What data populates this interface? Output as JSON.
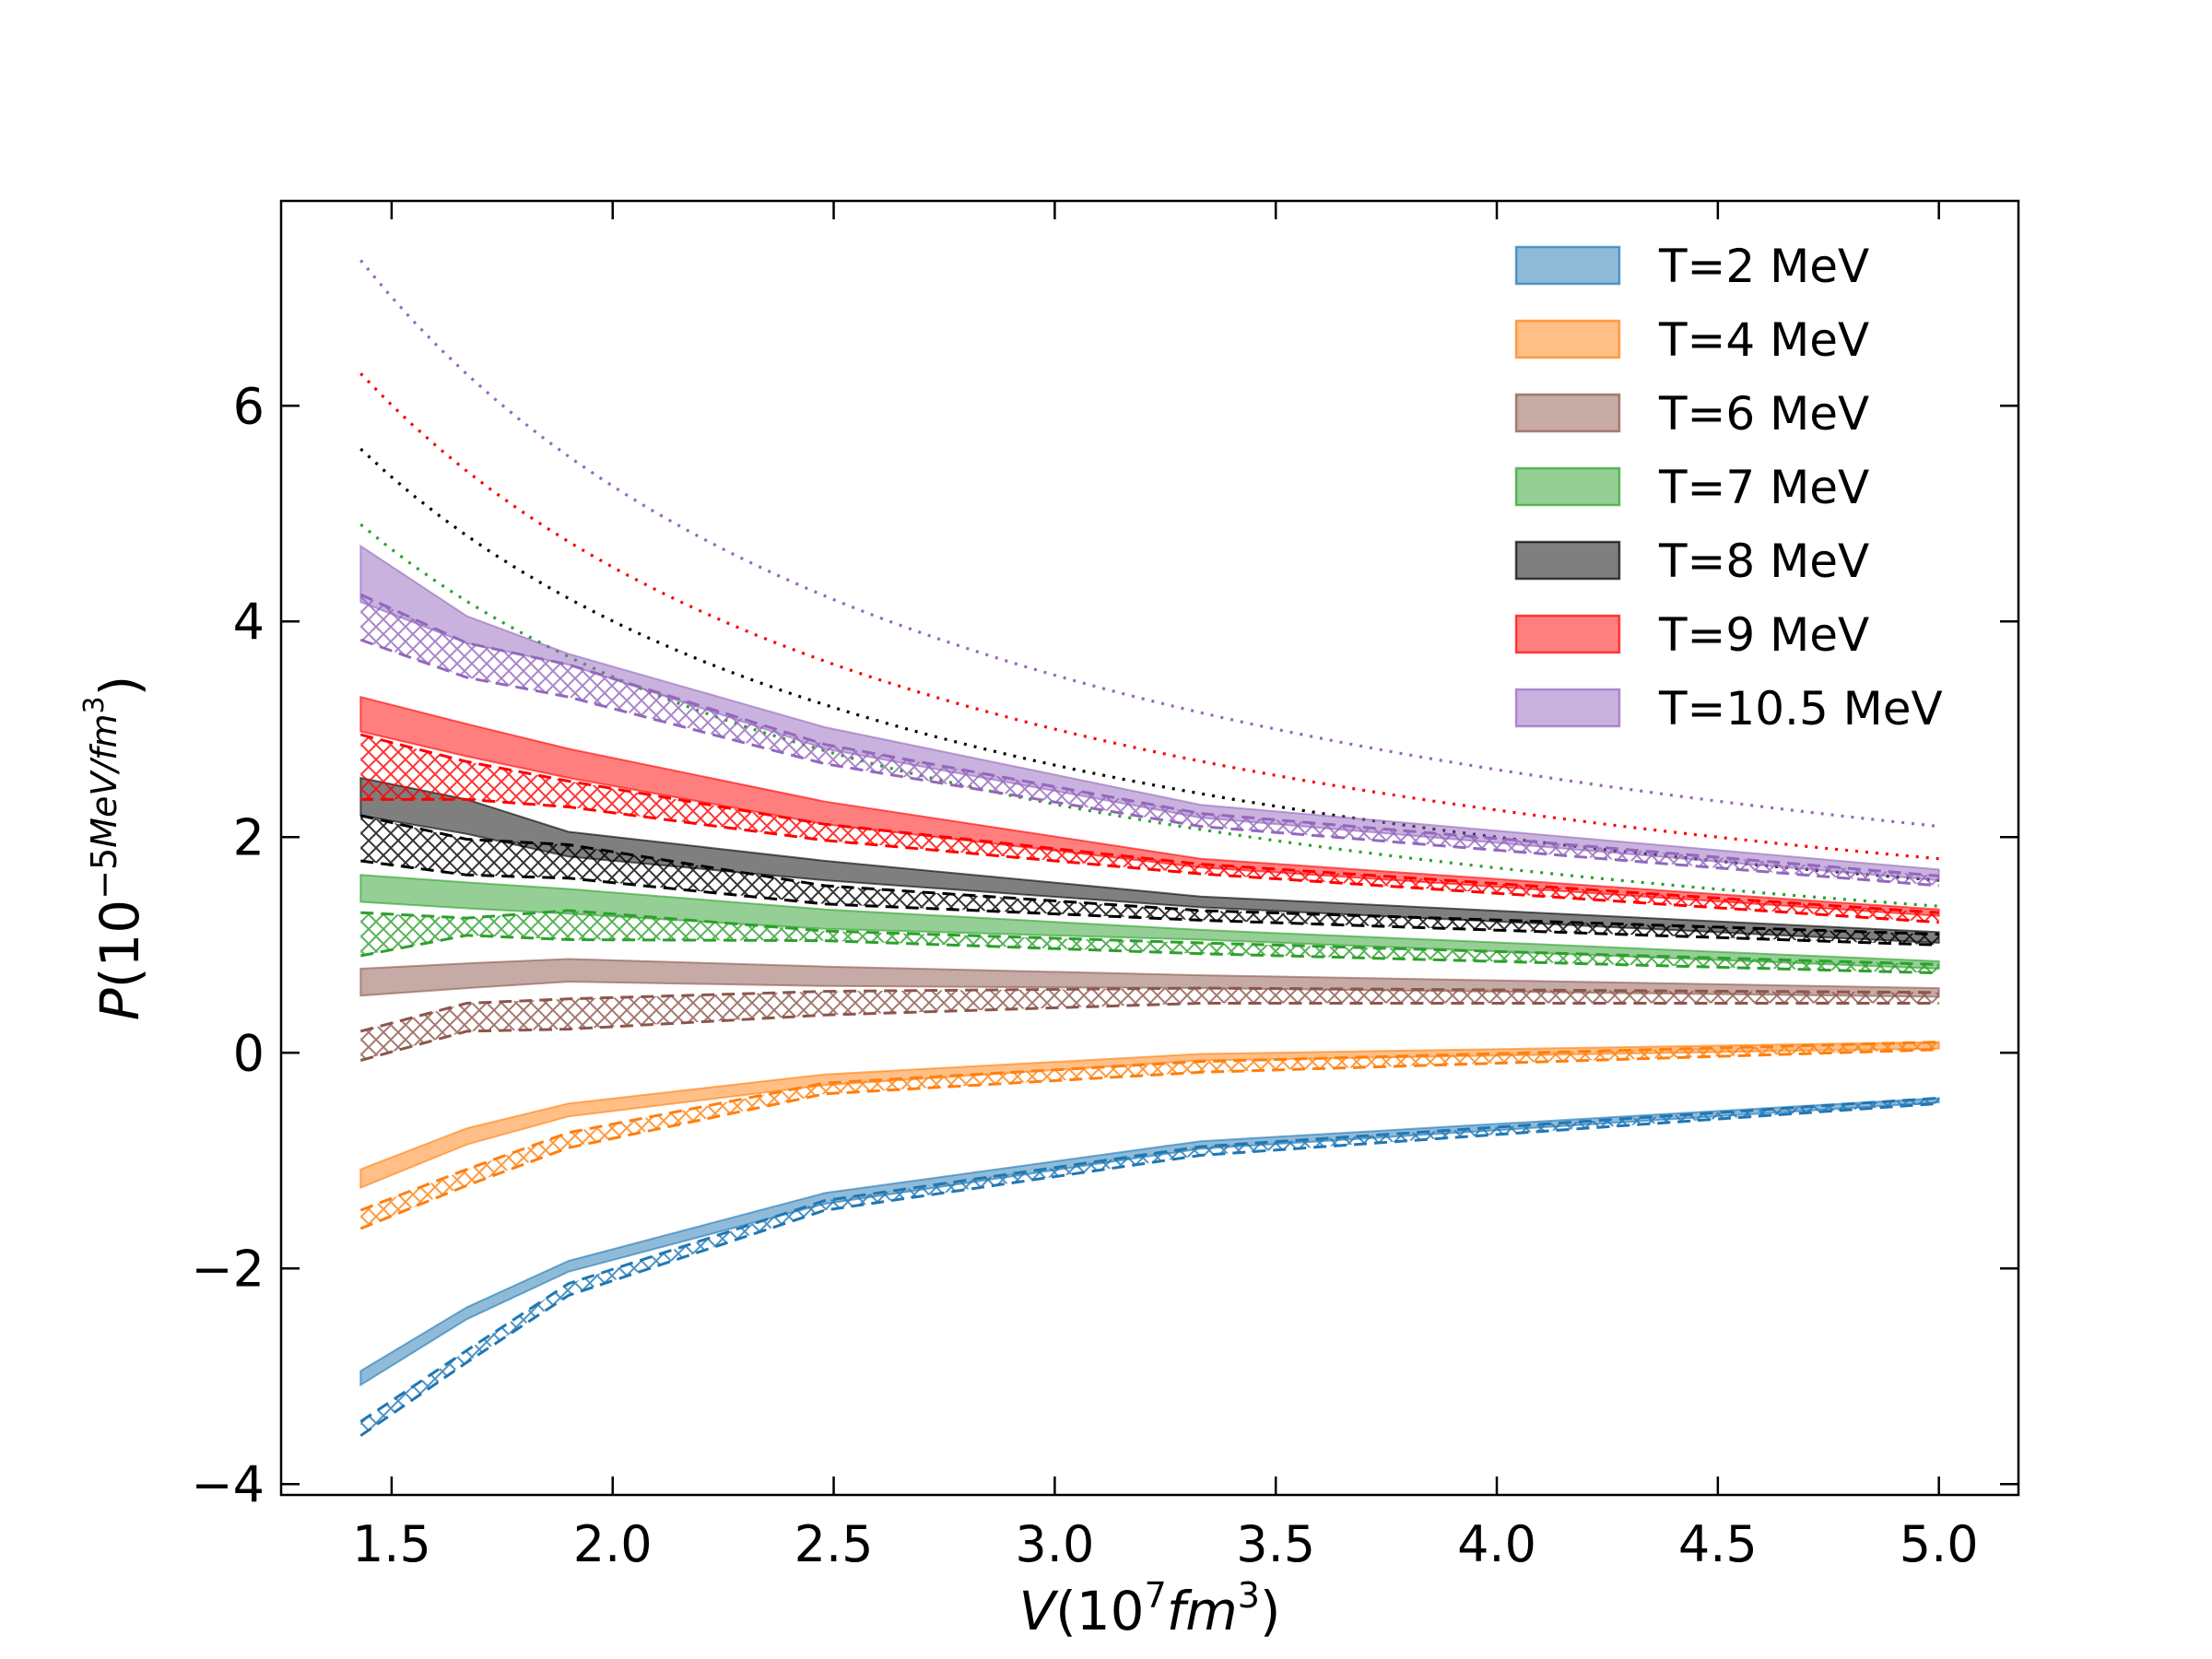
{
  "chart_data": {
    "type": "area",
    "title": "",
    "xlabel": "V(10^7 fm^3)",
    "ylabel": "P(10^-5 MeV/fm^3)",
    "xlim": [
      1.25,
      5.18
    ],
    "ylim": [
      -4.1,
      7.9
    ],
    "x_ticks": [
      1.5,
      2.0,
      2.5,
      3.0,
      3.5,
      4.0,
      4.5,
      5.0
    ],
    "x_tick_labels": [
      "1.5",
      "2.0",
      "2.5",
      "3.0",
      "3.5",
      "4.0",
      "4.5",
      "5.0"
    ],
    "y_ticks": [
      -4,
      -2,
      0,
      2,
      4,
      6
    ],
    "y_tick_labels": [
      "−4",
      "−2",
      "0",
      "2",
      "4",
      "6"
    ],
    "legend_position": "top-right",
    "x": [
      1.43,
      1.67,
      1.9,
      2.48,
      3.33,
      5.0
    ],
    "series": [
      {
        "name": "T=2 MeV",
        "color": "#1f77b4",
        "band_lower": [
          -3.08,
          -2.47,
          -2.03,
          -1.4,
          -0.89,
          -0.46
        ],
        "band_upper": [
          -2.95,
          -2.36,
          -1.93,
          -1.3,
          -0.82,
          -0.42
        ],
        "hatch_lower": [
          -3.55,
          -2.87,
          -2.25,
          -1.46,
          -0.95,
          -0.47
        ],
        "hatch_upper": [
          -3.42,
          -2.76,
          -2.14,
          -1.37,
          -0.87,
          -0.42
        ],
        "dotted": null
      },
      {
        "name": "T=4 MeV",
        "color": "#ff7f0e",
        "band_lower": [
          -1.25,
          -0.85,
          -0.59,
          -0.3,
          -0.07,
          0.04
        ],
        "band_upper": [
          -1.08,
          -0.7,
          -0.47,
          -0.2,
          -0.01,
          0.1
        ],
        "hatch_lower": [
          -1.63,
          -1.23,
          -0.88,
          -0.38,
          -0.18,
          0.03
        ],
        "hatch_upper": [
          -1.46,
          -1.08,
          -0.74,
          -0.28,
          -0.08,
          0.1
        ],
        "dotted": null
      },
      {
        "name": "T=6 MeV",
        "color": "#8c564b",
        "band_lower": [
          0.53,
          0.6,
          0.66,
          0.62,
          0.6,
          0.52
        ],
        "band_upper": [
          0.78,
          0.83,
          0.87,
          0.8,
          0.72,
          0.6
        ],
        "hatch_lower": [
          -0.07,
          0.2,
          0.22,
          0.35,
          0.46,
          0.46
        ],
        "hatch_upper": [
          0.2,
          0.46,
          0.5,
          0.57,
          0.6,
          0.56
        ],
        "dotted": null
      },
      {
        "name": "T=7 MeV",
        "color": "#2ca02c",
        "band_lower": [
          1.4,
          1.34,
          1.29,
          1.15,
          1.05,
          0.78
        ],
        "band_upper": [
          1.65,
          1.58,
          1.52,
          1.33,
          1.14,
          0.85
        ],
        "hatch_lower": [
          0.9,
          1.09,
          1.05,
          1.04,
          0.92,
          0.74
        ],
        "hatch_upper": [
          1.3,
          1.25,
          1.32,
          1.13,
          1.02,
          0.82
        ],
        "dotted": [
          4.9,
          4.2,
          3.68,
          2.82,
          1.98,
          1.36
        ]
      },
      {
        "name": "T=8 MeV",
        "color": "#000000",
        "band_lower": [
          2.2,
          2.03,
          1.82,
          1.6,
          1.35,
          1.02
        ],
        "band_upper": [
          2.55,
          2.35,
          2.05,
          1.78,
          1.45,
          1.12
        ],
        "hatch_lower": [
          1.78,
          1.65,
          1.62,
          1.38,
          1.23,
          1.0
        ],
        "hatch_upper": [
          2.2,
          1.98,
          1.93,
          1.55,
          1.32,
          1.1
        ],
        "dotted": [
          5.6,
          4.75,
          4.15,
          3.2,
          2.38,
          1.6
        ]
      },
      {
        "name": "T=9 MeV",
        "color": "#ff0000",
        "band_lower": [
          2.98,
          2.75,
          2.55,
          2.12,
          1.72,
          1.27
        ],
        "band_upper": [
          3.3,
          3.05,
          2.82,
          2.33,
          1.8,
          1.33
        ],
        "hatch_lower": [
          2.35,
          2.35,
          2.28,
          1.97,
          1.66,
          1.21
        ],
        "hatch_upper": [
          2.95,
          2.7,
          2.52,
          2.12,
          1.75,
          1.3
        ],
        "dotted": [
          6.3,
          5.35,
          4.7,
          3.6,
          2.65,
          1.8
        ]
      },
      {
        "name": "T=10.5 MeV",
        "color": "#9467bd",
        "band_lower": [
          4.18,
          3.8,
          3.6,
          2.82,
          2.18,
          1.6
        ],
        "band_upper": [
          4.7,
          4.05,
          3.7,
          3.02,
          2.3,
          1.7
        ],
        "hatch_lower": [
          3.83,
          3.48,
          3.3,
          2.68,
          2.1,
          1.55
        ],
        "hatch_upper": [
          4.25,
          3.8,
          3.6,
          2.86,
          2.22,
          1.64
        ],
        "dotted": [
          7.35,
          6.2,
          5.45,
          4.2,
          3.12,
          2.1
        ]
      }
    ]
  }
}
